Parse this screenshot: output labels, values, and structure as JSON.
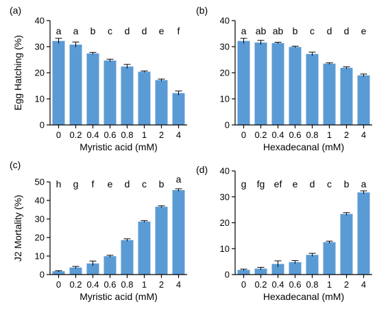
{
  "colors": {
    "bar": "#5b9bd5",
    "axis": "#000000",
    "error": "#000000"
  },
  "chart_data": [
    {
      "type": "bar",
      "panel": "(a)",
      "categories": [
        "0",
        "0.2",
        "0.4",
        "0.6",
        "0.8",
        "1",
        "2",
        "4"
      ],
      "values": [
        32.2,
        30.8,
        27.4,
        24.7,
        22.4,
        20.4,
        17.2,
        12.2
      ],
      "errors": [
        1.0,
        1.0,
        0.4,
        0.5,
        0.8,
        0.3,
        0.4,
        0.8
      ],
      "significance": [
        "a",
        "a",
        "b",
        "c",
        "d",
        "d",
        "e",
        "f"
      ],
      "xlabel": "Myristic acid (mM)",
      "ylabel": "Egg Hatching (%)",
      "ylim": [
        0,
        40
      ],
      "yticks": [
        "0",
        "10",
        "20",
        "30",
        "40"
      ]
    },
    {
      "type": "bar",
      "panel": "(b)",
      "categories": [
        "0",
        "0.2",
        "0.4",
        "0.6",
        "0.8",
        "1",
        "2",
        "4"
      ],
      "values": [
        32.2,
        31.6,
        31.4,
        29.9,
        27.2,
        23.5,
        21.9,
        19.0
      ],
      "errors": [
        1.0,
        0.8,
        0.3,
        0.3,
        0.7,
        0.3,
        0.4,
        0.5
      ],
      "significance": [
        "a",
        "ab",
        "ab",
        "b",
        "c",
        "d",
        "d",
        "e"
      ],
      "xlabel": "Hexadecanal (mM)",
      "ylabel": "",
      "ylim": [
        0,
        40
      ],
      "yticks": [
        "0",
        "10",
        "20",
        "30",
        "40"
      ]
    },
    {
      "type": "bar",
      "panel": "(c)",
      "categories": [
        "0",
        "0.2",
        "0.4",
        "0.6",
        "0.8",
        "1",
        "2",
        "4"
      ],
      "values": [
        1.8,
        3.8,
        6.0,
        9.9,
        18.6,
        28.6,
        36.6,
        45.6
      ],
      "errors": [
        0.3,
        0.6,
        1.3,
        0.5,
        0.7,
        0.5,
        0.5,
        0.7
      ],
      "significance": [
        "h",
        "g",
        "f",
        "e",
        "d",
        "c",
        "b",
        "a"
      ],
      "xlabel": "Myristic acid (mM)",
      "ylabel": "J2 Mortality (%)",
      "ylim": [
        0,
        50
      ],
      "yticks": [
        "0",
        "10",
        "20",
        "30",
        "40",
        "50"
      ]
    },
    {
      "type": "bar",
      "panel": "(d)",
      "categories": [
        "0",
        "0.2",
        "0.4",
        "0.6",
        "0.8",
        "1",
        "2",
        "4"
      ],
      "values": [
        1.8,
        2.3,
        4.1,
        4.8,
        7.6,
        12.5,
        23.4,
        31.7
      ],
      "errors": [
        0.3,
        0.5,
        1.2,
        0.6,
        0.6,
        0.4,
        0.5,
        0.6
      ],
      "significance": [
        "g",
        "fg",
        "ef",
        "e",
        "d",
        "c",
        "b",
        "a"
      ],
      "xlabel": "Hexadecanal (mM)",
      "ylabel": "",
      "ylim": [
        0,
        40
      ],
      "yticks": [
        "0",
        "10",
        "20",
        "30",
        "40"
      ]
    }
  ]
}
